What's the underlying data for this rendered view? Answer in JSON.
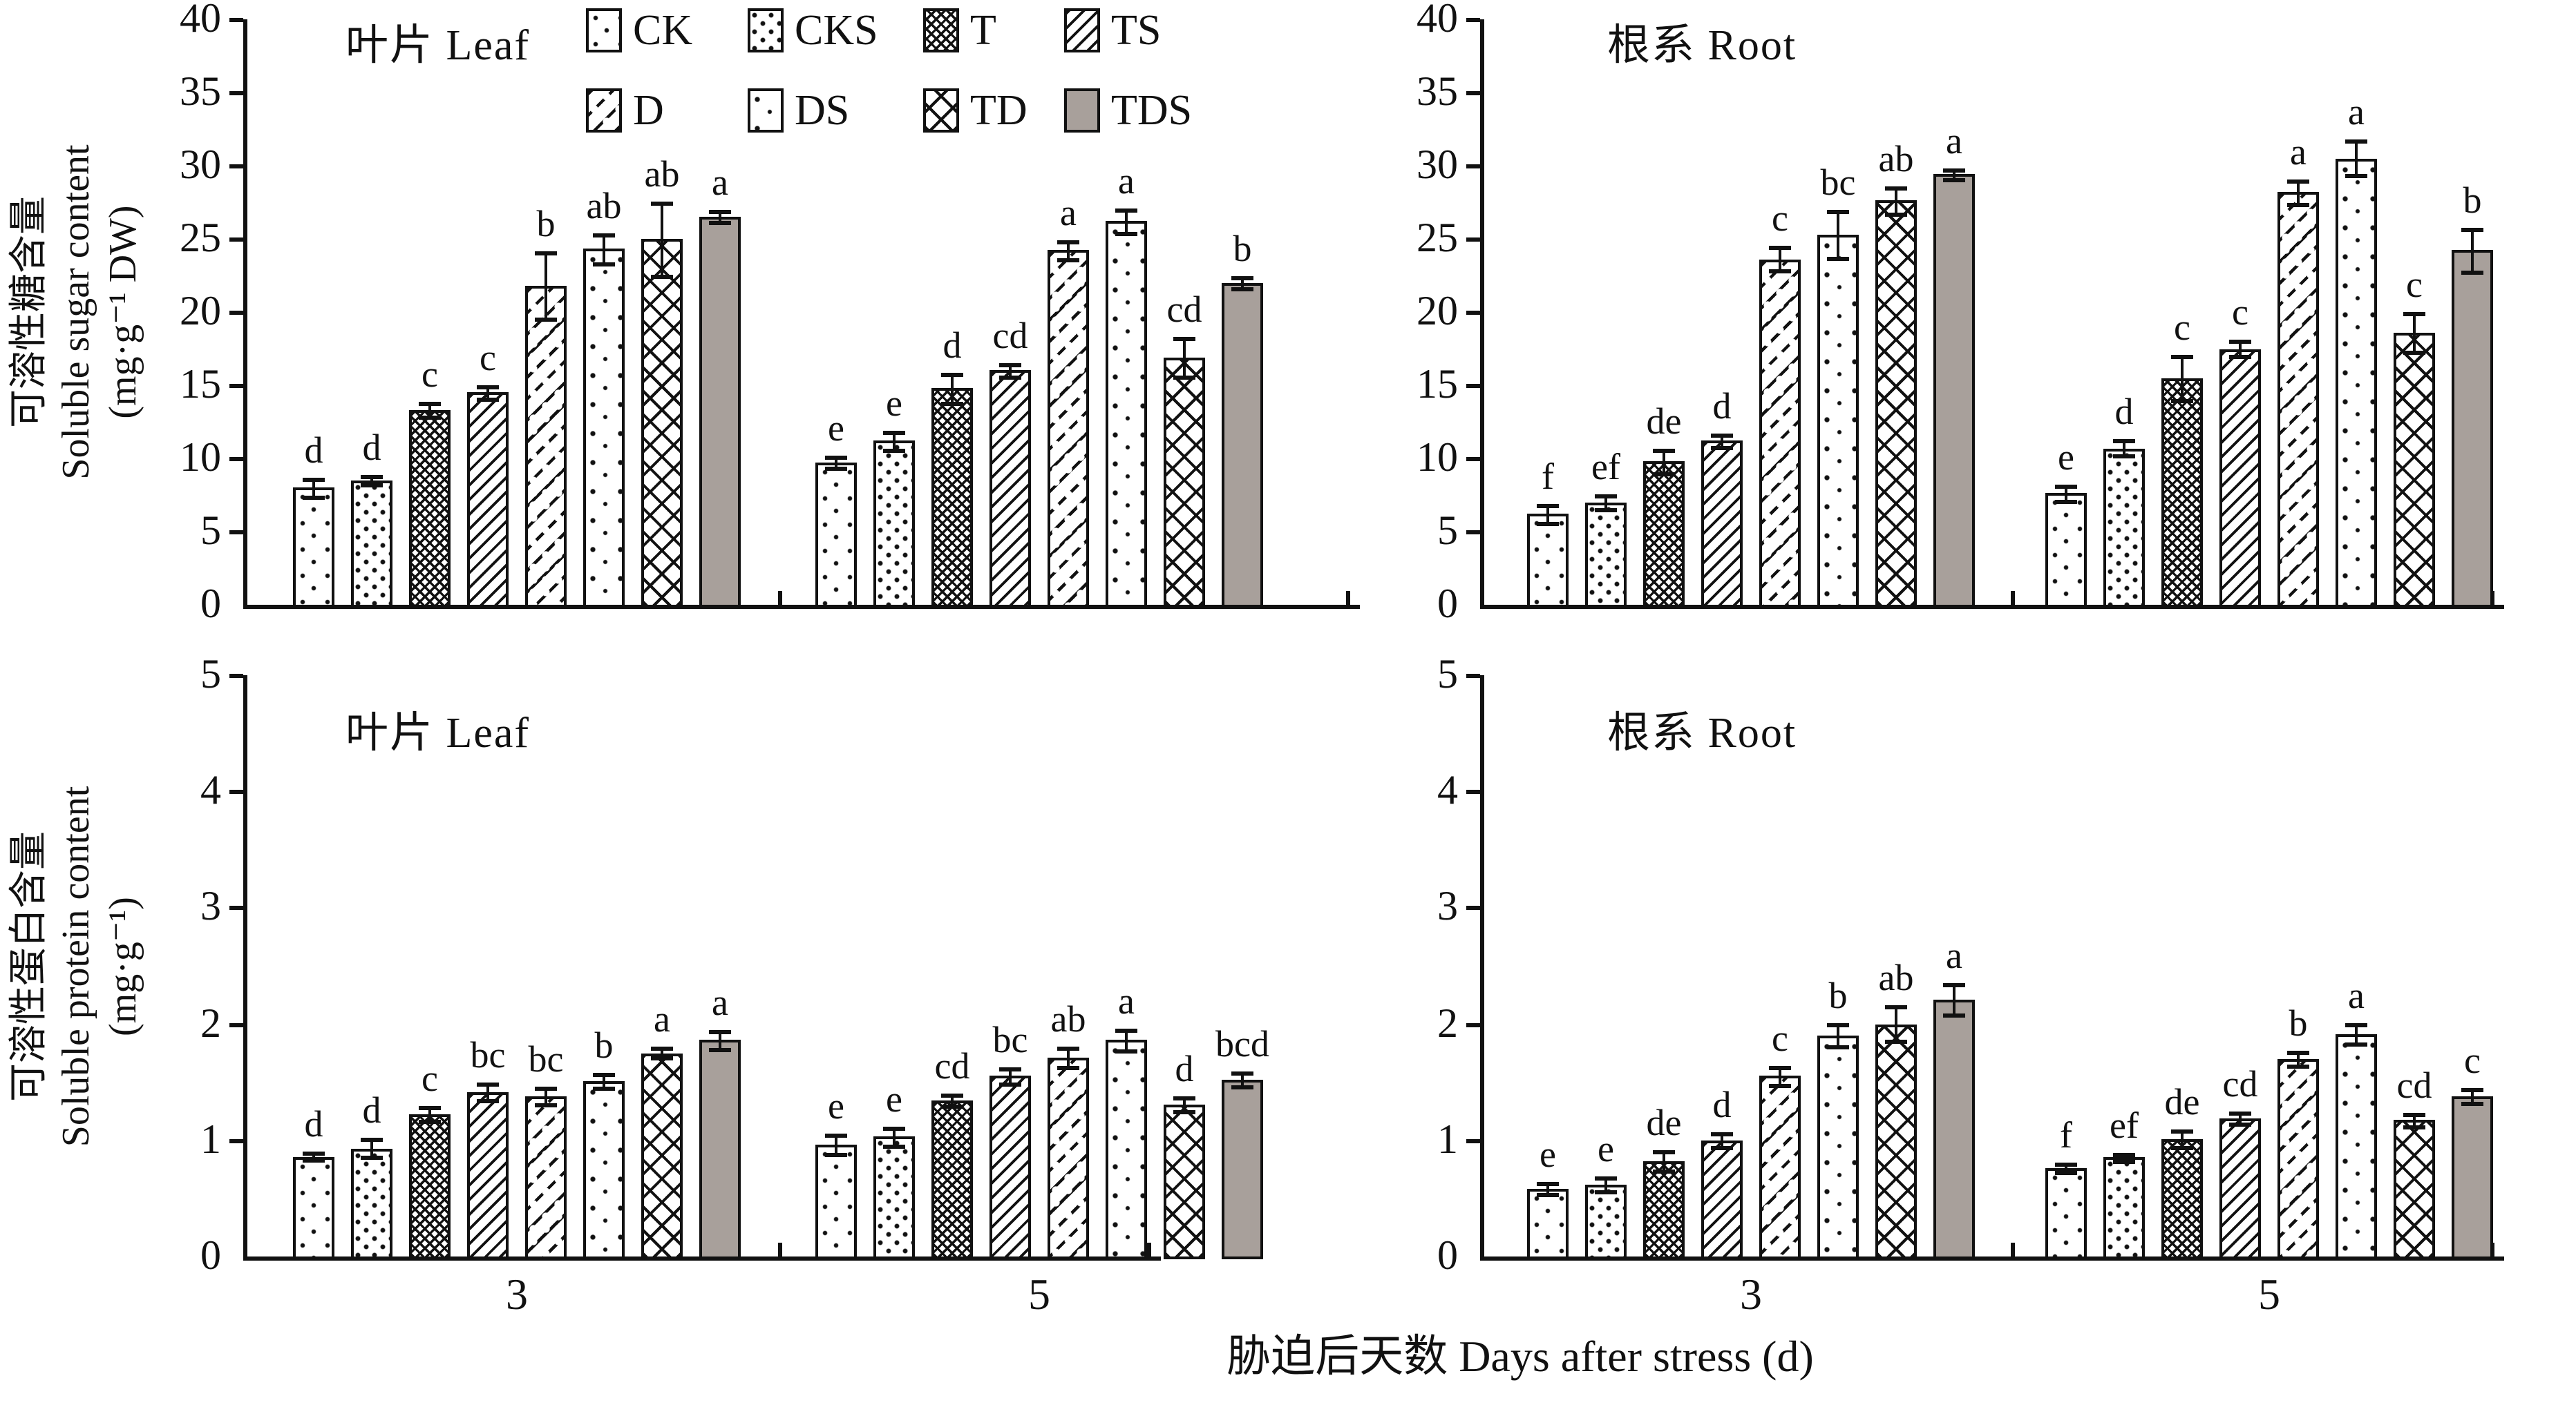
{
  "figure": {
    "x_axis_label": "胁迫后天数 Days after stress (d)",
    "treatments": [
      "CK",
      "CKS",
      "T",
      "TS",
      "D",
      "DS",
      "TD",
      "TDS"
    ],
    "legend": {
      "items": [
        {
          "label": "CK",
          "pattern": "ck"
        },
        {
          "label": "CKS",
          "pattern": "cks"
        },
        {
          "label": "T",
          "pattern": "t"
        },
        {
          "label": "TS",
          "pattern": "ts"
        },
        {
          "label": "D",
          "pattern": "d"
        },
        {
          "label": "DS",
          "pattern": "ds"
        },
        {
          "label": "TD",
          "pattern": "td"
        },
        {
          "label": "TDS",
          "pattern": "tds"
        }
      ]
    },
    "colors": {
      "ink": "#111111",
      "tds_fill": "#a8a09b",
      "background": "#ffffff"
    }
  },
  "chart_data": [
    {
      "id": "leaf-sugar",
      "type": "bar",
      "panel_title": "叶片 Leaf",
      "ylabel_zh": "可溶性糖含量",
      "ylabel_en": "Soluble sugar content",
      "ylabel_unit": "(mg·g⁻¹ DW)",
      "ylim": [
        0,
        40
      ],
      "yticks": [
        0,
        5,
        10,
        15,
        20,
        25,
        30,
        35,
        40
      ],
      "categories": [
        "3",
        "5"
      ],
      "groups": {
        "3": {
          "values": [
            8.0,
            8.5,
            13.3,
            14.5,
            21.8,
            24.3,
            25.0,
            26.5
          ],
          "errors": [
            0.6,
            0.25,
            0.5,
            0.4,
            2.3,
            1.0,
            2.5,
            0.35
          ],
          "letters": [
            "d",
            "d",
            "c",
            "c",
            "b",
            "ab",
            "ab",
            "a"
          ]
        },
        "5": {
          "values": [
            9.7,
            11.2,
            14.8,
            16.0,
            24.2,
            26.2,
            16.9,
            22.0
          ],
          "errors": [
            0.35,
            0.6,
            1.0,
            0.4,
            0.6,
            0.8,
            1.3,
            0.4
          ],
          "letters": [
            "e",
            "e",
            "d",
            "cd",
            "a",
            "a",
            "cd",
            "b"
          ]
        }
      }
    },
    {
      "id": "root-sugar",
      "type": "bar",
      "panel_title": "根系 Root",
      "ylim": [
        0,
        40
      ],
      "yticks": [
        0,
        5,
        10,
        15,
        20,
        25,
        30,
        35,
        40
      ],
      "categories": [
        "3",
        "5"
      ],
      "groups": {
        "3": {
          "values": [
            6.2,
            7.0,
            9.8,
            11.2,
            23.6,
            25.3,
            27.6,
            29.4
          ],
          "errors": [
            0.6,
            0.45,
            0.8,
            0.4,
            0.8,
            1.6,
            0.9,
            0.3
          ],
          "letters": [
            "f",
            "ef",
            "de",
            "d",
            "c",
            "bc",
            "ab",
            "a"
          ]
        },
        "5": {
          "values": [
            7.6,
            10.7,
            15.5,
            17.5,
            28.2,
            30.5,
            18.6,
            24.2
          ],
          "errors": [
            0.5,
            0.5,
            1.5,
            0.5,
            0.8,
            1.2,
            1.3,
            1.5
          ],
          "letters": [
            "e",
            "d",
            "c",
            "c",
            "a",
            "a",
            "c",
            "b"
          ]
        }
      }
    },
    {
      "id": "leaf-protein",
      "type": "bar",
      "panel_title": "叶片 Leaf",
      "ylabel_zh": "可溶性蛋白含量",
      "ylabel_en": "Soluble protein content",
      "ylabel_unit": "(mg·g⁻¹)",
      "ylim": [
        0,
        5
      ],
      "yticks": [
        0,
        1,
        2,
        3,
        4,
        5
      ],
      "categories": [
        "3",
        "5"
      ],
      "groups": {
        "3": {
          "values": [
            0.86,
            0.93,
            1.22,
            1.41,
            1.38,
            1.51,
            1.75,
            1.86
          ],
          "errors": [
            0.03,
            0.08,
            0.06,
            0.07,
            0.07,
            0.06,
            0.04,
            0.08
          ],
          "letters": [
            "d",
            "d",
            "c",
            "bc",
            "bc",
            "b",
            "a",
            "a"
          ]
        },
        "5": {
          "values": [
            0.96,
            1.03,
            1.34,
            1.55,
            1.71,
            1.86,
            1.31,
            1.52
          ],
          "errors": [
            0.08,
            0.08,
            0.05,
            0.06,
            0.08,
            0.09,
            0.06,
            0.06
          ],
          "letters": [
            "e",
            "e",
            "cd",
            "bc",
            "ab",
            "a",
            "d",
            "bcd"
          ]
        }
      }
    },
    {
      "id": "root-protein",
      "type": "bar",
      "panel_title": "根系 Root",
      "ylim": [
        0,
        5
      ],
      "yticks": [
        0,
        1,
        2,
        3,
        4,
        5
      ],
      "categories": [
        "3",
        "5"
      ],
      "groups": {
        "3": {
          "values": [
            0.58,
            0.62,
            0.82,
            1.0,
            1.55,
            1.9,
            2.0,
            2.21
          ],
          "errors": [
            0.05,
            0.06,
            0.08,
            0.06,
            0.08,
            0.09,
            0.15,
            0.13
          ],
          "letters": [
            "e",
            "e",
            "de",
            "d",
            "c",
            "b",
            "ab",
            "a"
          ]
        },
        "5": {
          "values": [
            0.76,
            0.85,
            1.01,
            1.19,
            1.7,
            1.91,
            1.17,
            1.38
          ],
          "errors": [
            0.03,
            0.03,
            0.07,
            0.05,
            0.06,
            0.08,
            0.05,
            0.06
          ],
          "letters": [
            "f",
            "ef",
            "de",
            "cd",
            "b",
            "a",
            "cd",
            "c"
          ]
        }
      }
    }
  ]
}
